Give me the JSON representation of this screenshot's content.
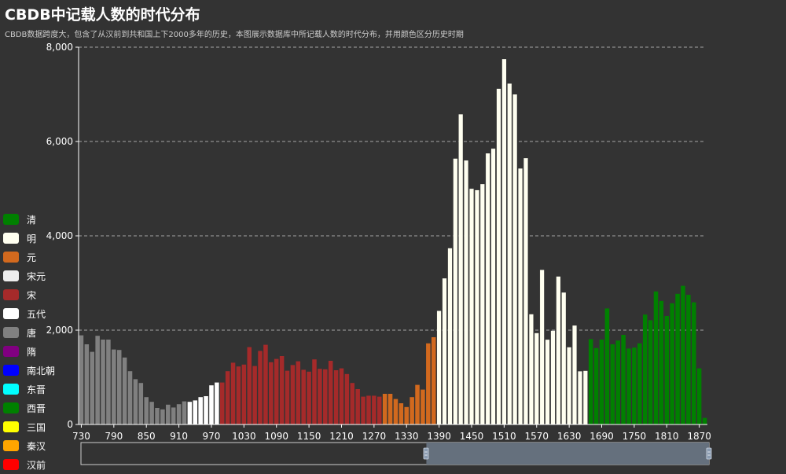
{
  "title": "CBDB中记载人数的时代分布",
  "subtitle": "CBDB数据跨度大，包含了从汉前到共和国上下2000多年的历史，本图展示数据库中所记载人数的时代分布，并用颜色区分历史时期",
  "legend": [
    {
      "name": "清",
      "color": "#008000"
    },
    {
      "name": "明",
      "color": "#fffff0"
    },
    {
      "name": "元",
      "color": "#d2691e"
    },
    {
      "name": "宋元",
      "color": "#eeeeee"
    },
    {
      "name": "宋",
      "color": "#a52a2a"
    },
    {
      "name": "五代",
      "color": "#ffffff"
    },
    {
      "name": "唐",
      "color": "#808080"
    },
    {
      "name": "隋",
      "color": "#800080"
    },
    {
      "name": "南北朝",
      "color": "#0000ff"
    },
    {
      "name": "东晋",
      "color": "#00ffff"
    },
    {
      "name": "西晋",
      "color": "#008000"
    },
    {
      "name": "三国",
      "color": "#ffff00"
    },
    {
      "name": "秦汉",
      "color": "#ffa500"
    },
    {
      "name": "汉前",
      "color": "#ff0000"
    }
  ],
  "chart_data": {
    "type": "bar",
    "xlabel": "",
    "ylabel": "",
    "ylim": [
      0,
      8000
    ],
    "yticks": [
      "0",
      "2,000",
      "4,000",
      "6,000",
      "8,000"
    ],
    "xticks": [
      "730",
      "790",
      "850",
      "910",
      "970",
      "1030",
      "1090",
      "1150",
      "1210",
      "1270",
      "1330",
      "1390",
      "1450",
      "1510",
      "1570",
      "1630",
      "1690",
      "1750",
      "1810",
      "1870"
    ],
    "x_start": 730,
    "x_step": 10,
    "grid": true,
    "bars": [
      {
        "period": "唐",
        "values": [
          1890,
          1700,
          1540,
          1880,
          1800,
          1800,
          1590,
          1580,
          1420,
          1130,
          960,
          880,
          580,
          480,
          350,
          320,
          420,
          360,
          430,
          490
        ]
      },
      {
        "period": "五代",
        "values": [
          480,
          510,
          580,
          600,
          830,
          890
        ]
      },
      {
        "period": "宋",
        "values": [
          890,
          1130,
          1310,
          1230,
          1270,
          1640,
          1240,
          1560,
          1690,
          1320,
          1390,
          1450,
          1140,
          1260,
          1340,
          1160,
          1120,
          1380,
          1180,
          1170,
          1350,
          1150,
          1190,
          1070,
          880,
          750,
          590,
          610,
          610,
          590
        ]
      },
      {
        "period": "元",
        "values": [
          650,
          650,
          540,
          450,
          370,
          580,
          840,
          740,
          1720,
          1850
        ]
      },
      {
        "period": "明",
        "values": [
          2410,
          3100,
          3740,
          5640,
          6580,
          5600,
          5000,
          4970,
          5100,
          5750,
          5850,
          7120,
          7750,
          7230,
          7000,
          5430,
          5650,
          2340,
          1940,
          3280,
          1800,
          1990,
          3140,
          2800,
          1640,
          2100,
          1130,
          1140
        ]
      },
      {
        "period": "清",
        "values": [
          1810,
          1620,
          1800,
          2460,
          1700,
          1780,
          1900,
          1610,
          1630,
          1720,
          2330,
          2210,
          2820,
          2620,
          2300,
          2570,
          2770,
          2940,
          2750,
          2590,
          1190,
          140
        ]
      }
    ],
    "zoom": {
      "start_percent": 55,
      "end_percent": 100
    }
  }
}
